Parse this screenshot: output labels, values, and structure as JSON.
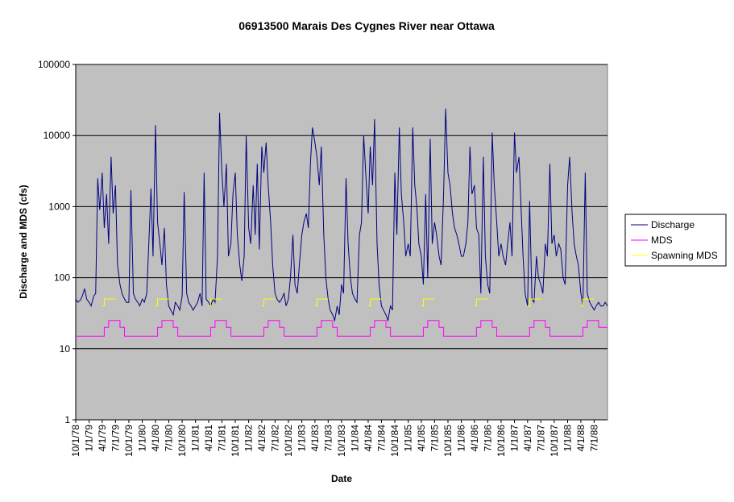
{
  "chart_data": {
    "type": "line",
    "title": "06913500 Marais Des Cygnes River near Ottawa",
    "x_label": "Date",
    "y_label": "Discharge and MDS (cfs)",
    "log_scale": true,
    "grid": true,
    "legend": "right",
    "xlim": [
      "10/1/78",
      "10/1/88"
    ],
    "xticks": [
      "10/1/78",
      "1/1/79",
      "4/1/79",
      "7/1/79",
      "10/1/79",
      "1/1/80",
      "4/1/80",
      "7/1/80",
      "10/1/80",
      "1/1/81",
      "4/1/81",
      "7/1/81",
      "10/1/81",
      "1/1/82",
      "4/1/82",
      "7/1/82",
      "10/1/82",
      "1/1/83",
      "4/1/83",
      "7/1/83",
      "10/1/83",
      "1/1/84",
      "4/1/84",
      "7/1/84",
      "10/1/84",
      "1/1/85",
      "4/1/85",
      "7/1/85",
      "10/1/85",
      "1/1/86",
      "4/1/86",
      "7/1/86",
      "10/1/86",
      "1/1/87",
      "4/1/87",
      "7/1/87",
      "10/1/87",
      "1/1/88",
      "4/1/88",
      "7/1/88"
    ],
    "ylim": [
      1,
      100000
    ],
    "yticks": [
      1,
      10,
      100,
      1000,
      10000,
      100000
    ],
    "series": [
      {
        "name": "Discharge",
        "color": "#000080",
        "x": [
          "10/1/78",
          "10/15/78",
          "11/1/78",
          "11/15/78",
          "12/1/78",
          "12/15/78",
          "1/1/79",
          "1/15/79",
          "2/1/79",
          "2/15/79",
          "3/1/79",
          "3/15/79",
          "4/1/79",
          "4/15/79",
          "5/1/79",
          "5/15/79",
          "6/1/79",
          "6/15/79",
          "7/1/79",
          "7/15/79",
          "8/1/79",
          "8/15/79",
          "9/1/79",
          "9/15/79",
          "10/1/79",
          "10/15/79",
          "11/1/79",
          "11/15/79",
          "12/1/79",
          "12/15/79",
          "1/1/80",
          "1/15/80",
          "2/1/80",
          "2/15/80",
          "3/1/80",
          "3/15/80",
          "4/1/80",
          "4/15/80",
          "5/1/80",
          "5/15/80",
          "6/1/80",
          "6/15/80",
          "7/1/80",
          "7/15/80",
          "8/1/80",
          "8/15/80",
          "9/1/80",
          "9/15/80",
          "10/1/80",
          "10/15/80",
          "11/1/80",
          "11/15/80",
          "12/1/80",
          "12/15/80",
          "1/1/81",
          "1/15/81",
          "2/1/81",
          "2/15/81",
          "3/1/81",
          "3/15/81",
          "4/1/81",
          "4/15/81",
          "5/1/81",
          "5/15/81",
          "6/1/81",
          "6/15/81",
          "7/1/81",
          "7/15/81",
          "8/1/81",
          "8/15/81",
          "9/1/81",
          "9/15/81",
          "10/1/81",
          "10/15/81",
          "11/1/81",
          "11/15/81",
          "12/1/81",
          "12/15/81",
          "1/1/82",
          "1/15/82",
          "2/1/82",
          "2/15/82",
          "3/1/82",
          "3/15/82",
          "4/1/82",
          "4/15/82",
          "5/1/82",
          "5/15/82",
          "6/1/82",
          "6/15/82",
          "7/1/82",
          "7/15/82",
          "8/1/82",
          "8/15/82",
          "9/1/82",
          "9/15/82",
          "10/1/82",
          "10/15/82",
          "11/1/82",
          "11/15/82",
          "12/1/82",
          "12/15/82",
          "1/1/83",
          "1/15/83",
          "2/1/83",
          "2/15/83",
          "3/1/83",
          "3/15/83",
          "4/1/83",
          "4/15/83",
          "5/1/83",
          "5/15/83",
          "6/1/83",
          "6/15/83",
          "7/1/83",
          "7/15/83",
          "8/1/83",
          "8/15/83",
          "9/1/83",
          "9/15/83",
          "10/1/83",
          "10/15/83",
          "11/1/83",
          "11/15/83",
          "12/1/83",
          "12/15/83",
          "1/1/84",
          "1/15/84",
          "2/1/84",
          "2/15/84",
          "3/1/84",
          "3/15/84",
          "4/1/84",
          "4/15/84",
          "5/1/84",
          "5/15/84",
          "6/1/84",
          "6/15/84",
          "7/1/84",
          "7/15/84",
          "8/1/84",
          "8/15/84",
          "9/1/84",
          "9/15/84",
          "10/1/84",
          "10/15/84",
          "11/1/84",
          "11/15/84",
          "12/1/84",
          "12/15/84",
          "1/1/85",
          "1/15/85",
          "2/1/85",
          "2/15/85",
          "3/1/85",
          "3/15/85",
          "4/1/85",
          "4/15/85",
          "5/1/85",
          "5/15/85",
          "6/1/85",
          "6/15/85",
          "7/1/85",
          "7/15/85",
          "8/1/85",
          "8/15/85",
          "9/1/85",
          "9/15/85",
          "10/1/85",
          "10/15/85",
          "11/1/85",
          "11/15/85",
          "12/1/85",
          "12/15/85",
          "1/1/86",
          "1/15/86",
          "2/1/86",
          "2/15/86",
          "3/1/86",
          "3/15/86",
          "4/1/86",
          "4/15/86",
          "5/1/86",
          "5/15/86",
          "6/1/86",
          "6/15/86",
          "7/1/86",
          "7/15/86",
          "8/1/86",
          "8/15/86",
          "9/1/86",
          "9/15/86",
          "10/1/86",
          "10/15/86",
          "11/1/86",
          "11/15/86",
          "12/1/86",
          "12/15/86",
          "1/1/87",
          "1/15/87",
          "2/1/87",
          "2/15/87",
          "3/1/87",
          "3/15/87",
          "4/1/87",
          "4/15/87",
          "5/1/87",
          "5/15/87",
          "6/1/87",
          "6/15/87",
          "7/1/87",
          "7/15/87",
          "8/1/87",
          "8/15/87",
          "9/1/87",
          "9/15/87",
          "10/1/87",
          "10/15/87",
          "11/1/87",
          "11/15/87",
          "12/1/87",
          "12/15/87",
          "1/1/88",
          "1/15/88",
          "2/1/88",
          "2/15/88",
          "3/1/88",
          "3/15/88",
          "4/1/88",
          "4/15/88",
          "5/1/88",
          "5/15/88",
          "6/1/88",
          "6/15/88",
          "7/1/88",
          "7/15/88",
          "8/1/88",
          "8/15/88",
          "9/1/88",
          "9/15/88",
          "10/1/88"
        ],
        "values": [
          50,
          45,
          48,
          55,
          70,
          50,
          45,
          40,
          55,
          60,
          2500,
          900,
          3000,
          500,
          1500,
          300,
          5000,
          800,
          2000,
          150,
          80,
          60,
          50,
          45,
          45,
          1700,
          60,
          50,
          45,
          40,
          50,
          45,
          60,
          300,
          1800,
          200,
          14000,
          600,
          300,
          150,
          500,
          80,
          40,
          35,
          30,
          45,
          40,
          35,
          55,
          1600,
          60,
          45,
          40,
          35,
          40,
          45,
          60,
          40,
          3000,
          50,
          45,
          40,
          50,
          45,
          200,
          21000,
          3000,
          1000,
          4000,
          200,
          300,
          1500,
          3000,
          400,
          150,
          90,
          200,
          10000,
          500,
          300,
          2000,
          400,
          4000,
          250,
          7000,
          3000,
          8000,
          2000,
          600,
          150,
          60,
          50,
          45,
          50,
          60,
          40,
          50,
          100,
          400,
          80,
          60,
          150,
          400,
          600,
          800,
          500,
          4000,
          13000,
          8000,
          5000,
          2000,
          7000,
          400,
          100,
          50,
          35,
          30,
          25,
          40,
          30,
          80,
          60,
          2500,
          300,
          100,
          60,
          50,
          45,
          400,
          600,
          10000,
          3000,
          800,
          7000,
          2000,
          17000,
          300,
          80,
          40,
          35,
          30,
          25,
          40,
          35,
          3000,
          400,
          13000,
          1500,
          600,
          200,
          300,
          200,
          13000,
          2000,
          1000,
          300,
          200,
          80,
          1500,
          100,
          9000,
          300,
          600,
          400,
          200,
          150,
          1500,
          24000,
          3000,
          2000,
          800,
          500,
          400,
          300,
          200,
          200,
          300,
          600,
          7000,
          1500,
          2000,
          500,
          400,
          60,
          5000,
          200,
          80,
          60,
          11000,
          2000,
          600,
          200,
          300,
          200,
          150,
          300,
          600,
          200,
          11000,
          3000,
          5000,
          1000,
          200,
          60,
          40,
          1200,
          50,
          45,
          200,
          100,
          80,
          60,
          300,
          200,
          4000,
          300,
          400,
          200,
          300,
          250,
          100,
          80,
          2000,
          5000,
          800,
          300,
          200,
          150,
          60,
          40,
          3000,
          60,
          45,
          40,
          35,
          40,
          45,
          40,
          40,
          45,
          40
        ]
      },
      {
        "name": "MDS",
        "color": "#ff00ff",
        "x": [
          "10/1/78",
          "4/15/79",
          "4/15/79",
          "5/15/79",
          "5/15/79",
          "8/1/79",
          "8/1/79",
          "9/1/79",
          "9/1/79",
          "4/15/80",
          "4/15/80",
          "5/15/80",
          "5/15/80",
          "8/1/80",
          "8/1/80",
          "9/1/80",
          "9/1/80",
          "4/15/81",
          "4/15/81",
          "5/15/81",
          "5/15/81",
          "8/1/81",
          "8/1/81",
          "9/1/81",
          "9/1/81",
          "4/15/82",
          "4/15/82",
          "5/15/82",
          "5/15/82",
          "8/1/82",
          "8/1/82",
          "9/1/82",
          "9/1/82",
          "4/15/83",
          "4/15/83",
          "5/15/83",
          "5/15/83",
          "8/1/83",
          "8/1/83",
          "9/1/83",
          "9/1/83",
          "4/15/84",
          "4/15/84",
          "5/15/84",
          "5/15/84",
          "8/1/84",
          "8/1/84",
          "9/1/84",
          "9/1/84",
          "4/15/85",
          "4/15/85",
          "5/15/85",
          "5/15/85",
          "8/1/85",
          "8/1/85",
          "9/1/85",
          "9/1/85",
          "4/15/86",
          "4/15/86",
          "5/15/86",
          "5/15/86",
          "8/1/86",
          "8/1/86",
          "9/1/86",
          "9/1/86",
          "4/15/87",
          "4/15/87",
          "5/15/87",
          "5/15/87",
          "8/1/87",
          "8/1/87",
          "9/1/87",
          "9/1/87",
          "4/15/88",
          "4/15/88",
          "5/15/88",
          "5/15/88",
          "8/1/88",
          "8/1/88",
          "10/1/88"
        ],
        "values": [
          15,
          15,
          20,
          20,
          25,
          25,
          20,
          20,
          15,
          15,
          20,
          20,
          25,
          25,
          20,
          20,
          15,
          15,
          20,
          20,
          25,
          25,
          20,
          20,
          15,
          15,
          20,
          20,
          25,
          25,
          20,
          20,
          15,
          15,
          20,
          20,
          25,
          25,
          20,
          20,
          15,
          15,
          20,
          20,
          25,
          25,
          20,
          20,
          15,
          15,
          20,
          20,
          25,
          25,
          20,
          20,
          15,
          15,
          20,
          20,
          25,
          25,
          20,
          20,
          15,
          15,
          20,
          20,
          25,
          25,
          20,
          20,
          15,
          15,
          20,
          20,
          25,
          25,
          20,
          20
        ]
      },
      {
        "name": "Spawning MDS",
        "color": "#ffff00",
        "x": [
          "4/1/79",
          "4/15/79",
          "4/15/79",
          "7/1/79",
          "7/2/79",
          "4/1/80",
          "4/15/80",
          "4/15/80",
          "7/1/80",
          "7/2/80",
          "4/1/81",
          "4/15/81",
          "4/15/81",
          "7/1/81",
          "7/2/81",
          "4/1/82",
          "4/15/82",
          "4/15/82",
          "7/1/82",
          "7/2/82",
          "4/1/83",
          "4/15/83",
          "4/15/83",
          "7/1/83",
          "7/2/83",
          "4/1/84",
          "4/15/84",
          "4/15/84",
          "7/1/84",
          "7/2/84",
          "4/1/85",
          "4/15/85",
          "4/15/85",
          "7/1/85",
          "7/2/85",
          "4/1/86",
          "4/15/86",
          "4/15/86",
          "7/1/86",
          "7/2/86",
          "4/1/87",
          "4/15/87",
          "4/15/87",
          "7/1/87",
          "7/2/87",
          "4/1/88",
          "4/15/88",
          "4/15/88",
          "7/1/88"
        ],
        "values": [
          40,
          40,
          50,
          50,
          null,
          40,
          40,
          50,
          50,
          null,
          40,
          40,
          50,
          50,
          null,
          40,
          40,
          50,
          50,
          null,
          40,
          40,
          50,
          50,
          null,
          40,
          40,
          50,
          50,
          null,
          40,
          40,
          50,
          50,
          null,
          40,
          40,
          50,
          50,
          null,
          40,
          40,
          50,
          50,
          null,
          40,
          40,
          50,
          50
        ]
      }
    ]
  }
}
